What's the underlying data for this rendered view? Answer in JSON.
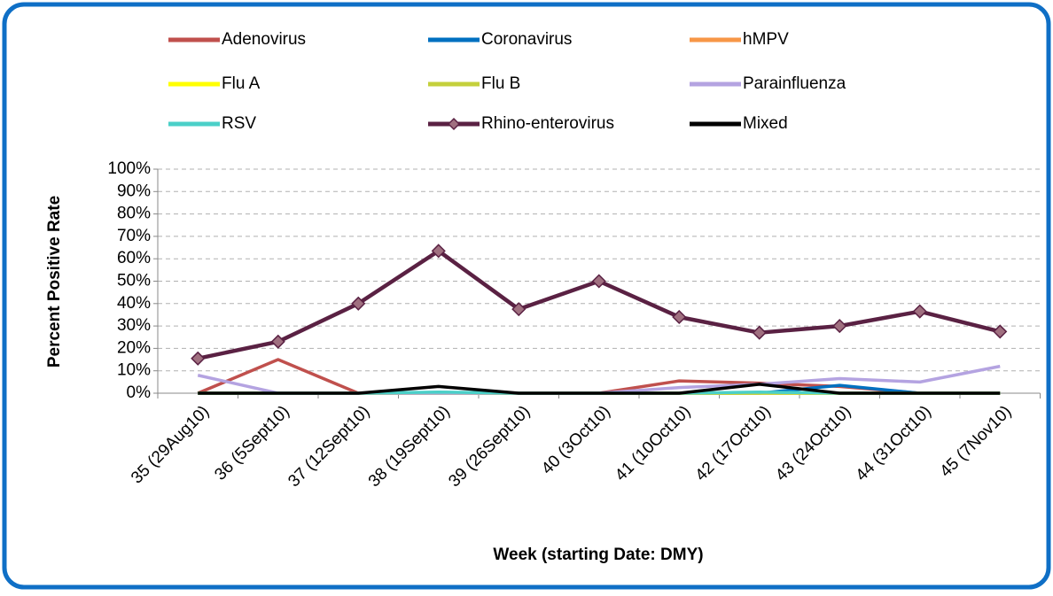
{
  "chart_data": {
    "type": "line",
    "ylabel": "Percent Positive Rate",
    "xlabel": "Week (starting Date: DMY)",
    "categories": [
      "35 (29Aug10)",
      "36 (5Sept10)",
      "37 (12Sept10)",
      "38 (19Sept10)",
      "39 (26Sept10)",
      "40 (3Oct10)",
      "41 (10Oct10)",
      "42 (17Oct10)",
      "43 (24Oct10)",
      "44 (31Oct10)",
      "45 (7Nov10)"
    ],
    "series": [
      {
        "name": "Adenovirus",
        "color": "#c0504d",
        "values": [
          0,
          15,
          0,
          0,
          0,
          0,
          5.5,
          4.5,
          3,
          0,
          0
        ]
      },
      {
        "name": "Coronavirus",
        "color": "#0070c0",
        "values": [
          0,
          0,
          0,
          0,
          0,
          0,
          0,
          0,
          3.5,
          0,
          0
        ]
      },
      {
        "name": "hMPV",
        "color": "#f79646",
        "values": [
          0,
          0,
          0,
          0,
          0,
          0,
          0,
          0,
          0,
          0,
          0
        ]
      },
      {
        "name": "Flu A",
        "color": "#ffff00",
        "values": [
          0,
          0,
          0,
          0,
          0,
          0,
          0,
          0,
          0,
          0,
          0
        ]
      },
      {
        "name": "Flu B",
        "color": "#c4d03c",
        "values": [
          0,
          0,
          0,
          0,
          0,
          0,
          0,
          0,
          0,
          0,
          0
        ]
      },
      {
        "name": "Parainfluenza",
        "color": "#b4a3e1",
        "values": [
          8,
          0,
          0,
          0,
          0,
          0,
          2.5,
          4,
          6.5,
          5,
          12
        ]
      },
      {
        "name": "RSV",
        "color": "#4bd0c8",
        "values": [
          0,
          0,
          0,
          0.5,
          0,
          0,
          0,
          0.5,
          0,
          0,
          0
        ]
      },
      {
        "name": "Rhino-enterovirus",
        "color": "#5a2143",
        "marker": "diamond",
        "values": [
          15.5,
          23,
          40,
          63.5,
          37.5,
          50,
          34,
          27,
          30,
          36.5,
          27.5
        ]
      },
      {
        "name": "Mixed",
        "color": "#000000",
        "values": [
          0,
          0,
          0,
          3,
          0,
          0,
          0,
          4,
          0,
          0,
          0
        ]
      }
    ],
    "ylim": [
      0,
      100
    ],
    "yticks": [
      {
        "value": 0,
        "label": "0%"
      },
      {
        "value": 10,
        "label": "10%"
      },
      {
        "value": 20,
        "label": "20%"
      },
      {
        "value": 30,
        "label": "30%"
      },
      {
        "value": 40,
        "label": "40%"
      },
      {
        "value": 50,
        "label": "50%"
      },
      {
        "value": 60,
        "label": "60%"
      },
      {
        "value": 70,
        "label": "70%"
      },
      {
        "value": 80,
        "label": "80%"
      },
      {
        "value": 90,
        "label": "90%"
      },
      {
        "value": 100,
        "label": "100%"
      }
    ],
    "grid": true,
    "legend": "top"
  }
}
